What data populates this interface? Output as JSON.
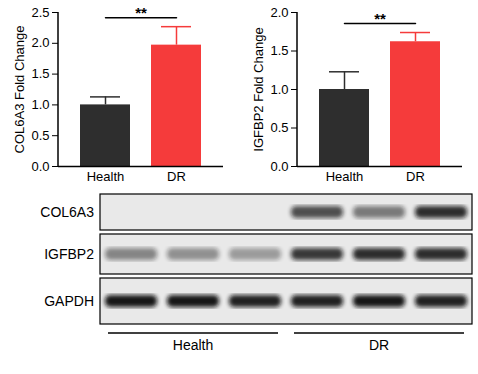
{
  "chart_data": [
    {
      "type": "bar",
      "y_label": "COL6A3 Fold Change",
      "categories": [
        "Health",
        "DR"
      ],
      "values": [
        1.0,
        1.97
      ],
      "errors": [
        0.13,
        0.3
      ],
      "colors": [
        "#2e2e2e",
        "#f53b3b"
      ],
      "ylim": [
        0,
        2.5
      ],
      "yticks": [
        {
          "value": 0,
          "label": "0.0"
        },
        {
          "value": 0.5,
          "label": "0.5"
        },
        {
          "value": 1,
          "label": "1.0"
        },
        {
          "value": 1.5,
          "label": "1.5"
        },
        {
          "value": 2,
          "label": "2.0"
        },
        {
          "value": 2.5,
          "label": "2.5"
        }
      ],
      "annotation": "**"
    },
    {
      "type": "bar",
      "y_label": "IGFBP2 Fold Change",
      "categories": [
        "Health",
        "DR"
      ],
      "values": [
        1.0,
        1.62
      ],
      "errors": [
        0.23,
        0.12
      ],
      "colors": [
        "#2e2e2e",
        "#f53b3b"
      ],
      "ylim": [
        0,
        2.0
      ],
      "yticks": [
        {
          "value": 0,
          "label": "0.0"
        },
        {
          "value": 0.5,
          "label": "0.5"
        },
        {
          "value": 1,
          "label": "1.0"
        },
        {
          "value": 1.5,
          "label": "1.5"
        },
        {
          "value": 2,
          "label": "2.0"
        }
      ],
      "annotation": "**"
    }
  ],
  "blot": {
    "rows": [
      {
        "label": "COL6A3",
        "intensities": [
          0,
          0,
          0,
          0.7,
          0.5,
          0.85
        ]
      },
      {
        "label": "IGFBP2",
        "intensities": [
          0.45,
          0.4,
          0.35,
          0.8,
          0.85,
          0.85
        ]
      },
      {
        "label": "GAPDH",
        "intensities": [
          0.95,
          0.95,
          0.9,
          0.9,
          0.95,
          0.9
        ]
      }
    ],
    "groups": [
      {
        "label": "Health",
        "lanes": 3
      },
      {
        "label": "DR",
        "lanes": 3
      }
    ]
  }
}
